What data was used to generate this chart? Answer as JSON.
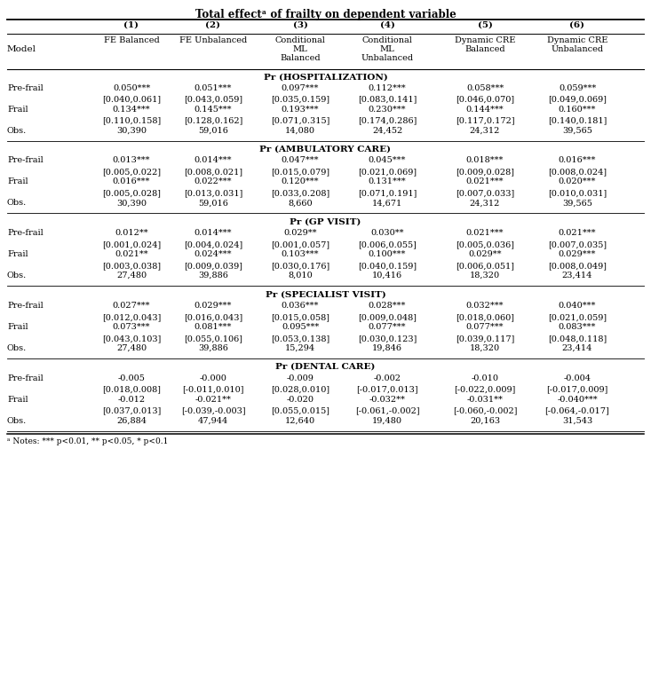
{
  "title": "Total effectᵃ of frailty on dependent variable",
  "col_headers_line1": [
    "(1)",
    "(2)",
    "(3)",
    "(4)",
    "(5)",
    "(6)"
  ],
  "col_headers_line2": [
    "FE Balanced",
    "FE Unbalanced",
    "Conditional\nML\nBalanced",
    "Conditional\nML\nUnbalanced",
    "Dynamic CRE\nBalanced",
    "Dynamic CRE\nUnbalanced"
  ],
  "row_label_col": "Model",
  "sections": [
    {
      "title": "Pr (HOSPITALIZATION)",
      "rows": [
        {
          "label": "Pre-frail",
          "values": [
            "0.050***",
            "0.051***",
            "0.097***",
            "0.112***",
            "0.058***",
            "0.059***"
          ],
          "type": "main"
        },
        {
          "label": "",
          "values": [
            "[0.040,0.061]",
            "[0.043,0.059]",
            "[0.035,0.159]",
            "[0.083,0.141]",
            "[0.046,0.070]",
            "[0.049,0.069]"
          ],
          "type": "ci"
        },
        {
          "label": "Frail",
          "values": [
            "0.134***",
            "0.145***",
            "0.193***",
            "0.230***",
            "0.144***",
            "0.160***"
          ],
          "type": "main"
        },
        {
          "label": "",
          "values": [
            "[0.110,0.158]",
            "[0.128,0.162]",
            "[0.071,0.315]",
            "[0.174,0.286]",
            "[0.117,0.172]",
            "[0.140,0.181]"
          ],
          "type": "ci"
        },
        {
          "label": "Obs.",
          "values": [
            "30,390",
            "59,016",
            "14,080",
            "24,452",
            "24,312",
            "39,565"
          ],
          "type": "obs"
        }
      ]
    },
    {
      "title": "Pr (AMBULATORY CARE)",
      "rows": [
        {
          "label": "Pre-frail",
          "values": [
            "0.013***",
            "0.014***",
            "0.047***",
            "0.045***",
            "0.018***",
            "0.016***"
          ],
          "type": "main"
        },
        {
          "label": "",
          "values": [
            "[0.005,0.022]",
            "[0.008,0.021]",
            "[0.015,0.079]",
            "[0.021,0.069]",
            "[0.009,0.028]",
            "[0.008,0.024]"
          ],
          "type": "ci"
        },
        {
          "label": "Frail",
          "values": [
            "0.016***",
            "0.022***",
            "0.120***",
            "0.131***",
            "0.021***",
            "0.020***"
          ],
          "type": "main"
        },
        {
          "label": "",
          "values": [
            "[0.005,0.028]",
            "[0.013,0.031]",
            "[0.033,0.208]",
            "[0.071,0.191]",
            "[0.007,0.033]",
            "[0.010,0.031]"
          ],
          "type": "ci"
        },
        {
          "label": "Obs.",
          "values": [
            "30,390",
            "59,016",
            "8,660",
            "14,671",
            "24,312",
            "39,565"
          ],
          "type": "obs"
        }
      ]
    },
    {
      "title": "Pr (GP VISIT)",
      "rows": [
        {
          "label": "Pre-frail",
          "values": [
            "0.012**",
            "0.014***",
            "0.029**",
            "0.030**",
            "0.021***",
            "0.021***"
          ],
          "type": "main"
        },
        {
          "label": "",
          "values": [
            "[0.001,0.024]",
            "[0.004,0.024]",
            "[0.001,0.057]",
            "[0.006,0.055]",
            "[0.005,0.036]",
            "[0.007,0.035]"
          ],
          "type": "ci"
        },
        {
          "label": "Frail",
          "values": [
            "0.021**",
            "0.024***",
            "0.103***",
            "0.100***",
            "0.029**",
            "0.029***"
          ],
          "type": "main"
        },
        {
          "label": "",
          "values": [
            "[0.003,0.038]",
            "[0.009,0.039]",
            "[0.030,0.176]",
            "[0.040,0.159]",
            "[0.006,0.051]",
            "[0.008,0.049]"
          ],
          "type": "ci"
        },
        {
          "label": "Obs.",
          "values": [
            "27,480",
            "39,886",
            "8,010",
            "10,416",
            "18,320",
            "23,414"
          ],
          "type": "obs"
        }
      ]
    },
    {
      "title": "Pr (SPECIALIST VISIT)",
      "rows": [
        {
          "label": "Pre-frail",
          "values": [
            "0.027***",
            "0.029***",
            "0.036***",
            "0.028***",
            "0.032***",
            "0.040***"
          ],
          "type": "main"
        },
        {
          "label": "",
          "values": [
            "[0.012,0.043]",
            "[0.016,0.043]",
            "[0.015,0.058]",
            "[0.009,0.048]",
            "[0.018,0.060]",
            "[0.021,0.059]"
          ],
          "type": "ci"
        },
        {
          "label": "Frail",
          "values": [
            "0.073***",
            "0.081***",
            "0.095***",
            "0.077***",
            "0.077***",
            "0.083***"
          ],
          "type": "main"
        },
        {
          "label": "",
          "values": [
            "[0.043,0.103]",
            "[0.055,0.106]",
            "[0.053,0.138]",
            "[0.030,0.123]",
            "[0.039,0.117]",
            "[0.048,0.118]"
          ],
          "type": "ci"
        },
        {
          "label": "Obs.",
          "values": [
            "27,480",
            "39,886",
            "15,294",
            "19,846",
            "18,320",
            "23,414"
          ],
          "type": "obs"
        }
      ]
    },
    {
      "title": "Pr (DENTAL CARE)",
      "rows": [
        {
          "label": "Pre-frail",
          "values": [
            "-0.005",
            "-0.000",
            "-0.009",
            "-0.002",
            "-0.010",
            "-0.004"
          ],
          "type": "main"
        },
        {
          "label": "",
          "values": [
            "[0.018,0.008]",
            "[-0.011,0.010]",
            "[0.028,0.010]",
            "[-0.017,0.013]",
            "[-0.022,0.009]",
            "[-0.017,0.009]"
          ],
          "type": "ci"
        },
        {
          "label": "Frail",
          "values": [
            "-0.012",
            "-0.021**",
            "-0.020",
            "-0.032**",
            "-0.031**",
            "-0.040***"
          ],
          "type": "main"
        },
        {
          "label": "",
          "values": [
            "[0.037,0.013]",
            "[-0.039,-0.003]",
            "[0.055,0.015]",
            "[-0.061,-0.002]",
            "[-0.060,-0.002]",
            "[-0.064,-0.017]"
          ],
          "type": "ci"
        },
        {
          "label": "Obs.",
          "values": [
            "26,884",
            "47,944",
            "12,640",
            "19,480",
            "20,163",
            "31,543"
          ],
          "type": "obs"
        }
      ]
    }
  ],
  "footnote": "ᵃ Notes: *** p<0.01, ** p<0.05, * p<0.1",
  "font_size_title": 8.5,
  "font_size_header": 7.5,
  "font_size_body": 7.0,
  "font_size_section": 7.5,
  "font_size_footnote": 6.5
}
